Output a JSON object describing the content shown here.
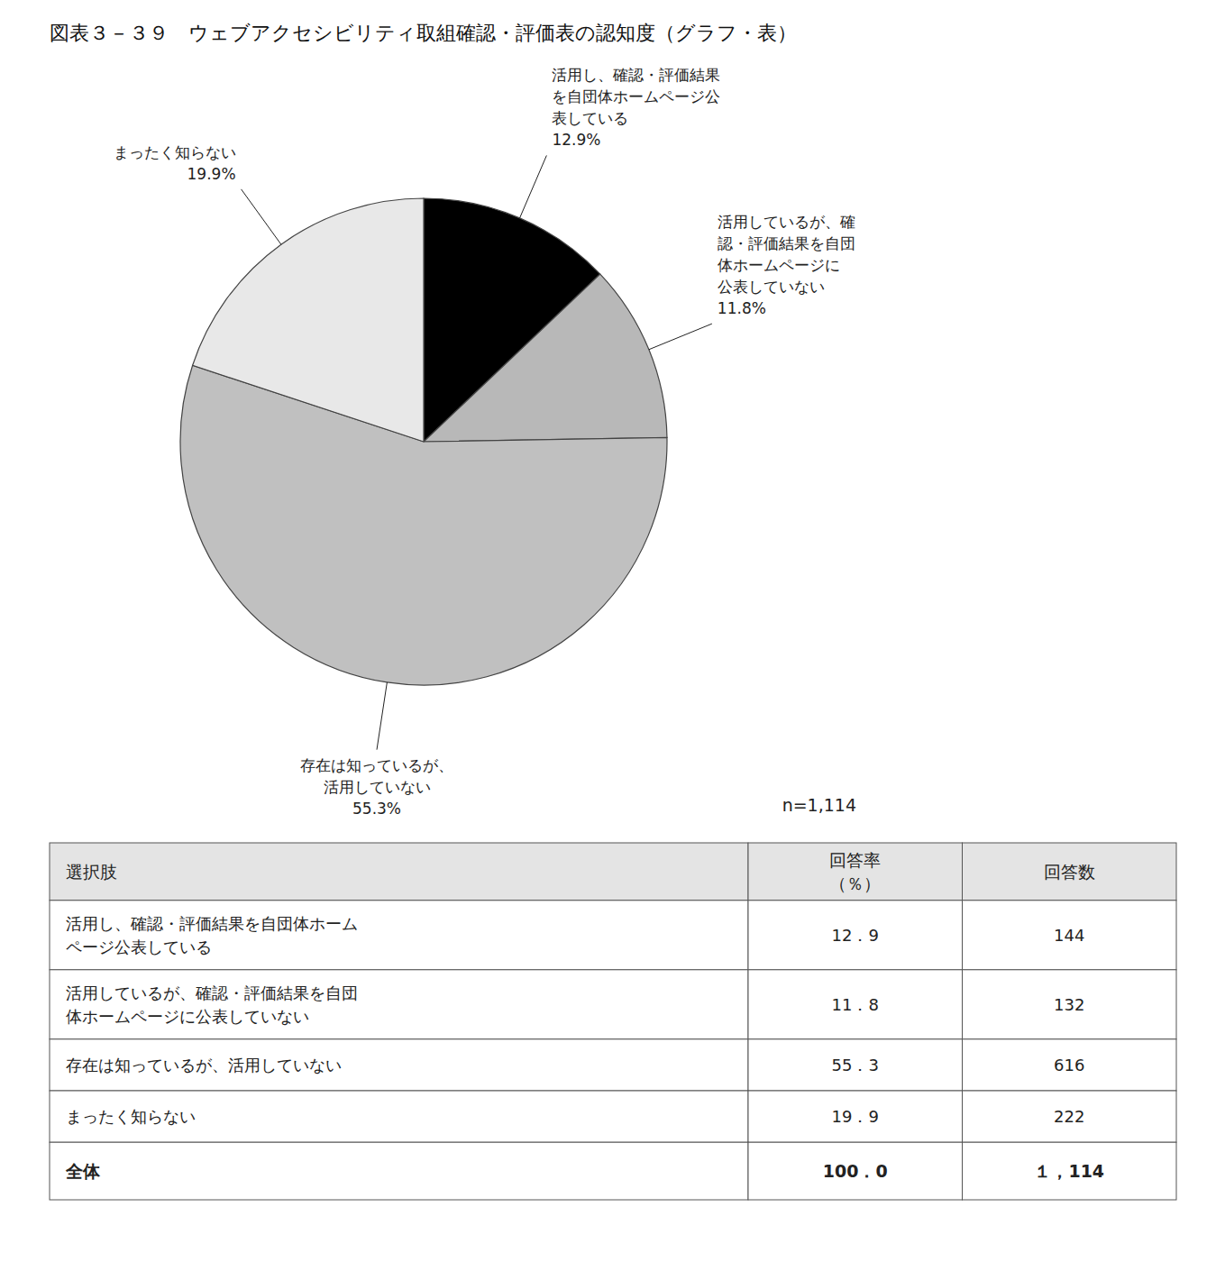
{
  "chart_data": [
    {
      "type": "pie",
      "title": "図表３－３９　ウェブアクセシビリティ取組確認・評価表の認知度（グラフ・表）",
      "categories": [
        "活用し、確認・評価結果\nを自団体ホームページ公\n表している",
        "活用しているが、確\n認・評価結果を自団\n体ホームページに\n公表していない",
        "存在は知っているが、\n活用していない",
        "まったく知らない"
      ],
      "values": [
        12.9,
        11.8,
        55.3,
        19.9
      ],
      "value_labels": [
        "12.9%",
        "11.8%",
        "55.3%",
        "19.9%"
      ],
      "colors": [
        "#000000",
        "#b8b8b8",
        "#c0c0c0",
        "#e8e8e8"
      ],
      "data_labels": true,
      "annotations": [
        "n=1,114"
      ]
    },
    {
      "type": "table",
      "columns": [
        "選択肢",
        "回答率\n（％）",
        "回答数"
      ],
      "rows": [
        [
          "活用し、確認・評価結果を自団体ホーム\nページ公表している",
          "12．9",
          "144"
        ],
        [
          "活用しているが、確認・評価結果を自団\n体ホームページに公表していない",
          "11．8",
          "132"
        ],
        [
          "存在は知っているが、活用していない",
          "55．3",
          "616"
        ],
        [
          "まったく知らない",
          "19．9",
          "222"
        ],
        [
          "全体",
          "100．0",
          "１，114"
        ]
      ]
    }
  ]
}
